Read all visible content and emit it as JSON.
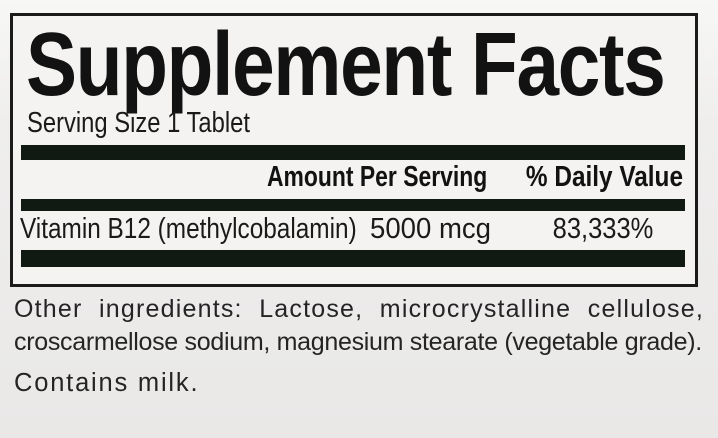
{
  "panel": {
    "title": "Supplement Facts",
    "serving_size": "Serving Size 1 Tablet",
    "headers": {
      "amount": "Amount Per Serving",
      "daily_value": "% Daily Value"
    },
    "nutrients": [
      {
        "name": "Vitamin B12 (methylcobalamin)",
        "amount": "5000 mcg",
        "daily_value": "83,333%"
      }
    ]
  },
  "footnotes": {
    "other_ingredients_line1": "Other ingredients: Lactose, microcrystalline cellulose,",
    "other_ingredients_line2": "croscarmellose sodium, magnesium stearate (vegetable grade).",
    "allergen": "Contains milk."
  },
  "colors": {
    "rule_bar": "#101a12",
    "panel_border": "#1b1b1b",
    "panel_bg": "#f4f3f1",
    "page_bg": "#ebebea",
    "text": "#161616"
  }
}
